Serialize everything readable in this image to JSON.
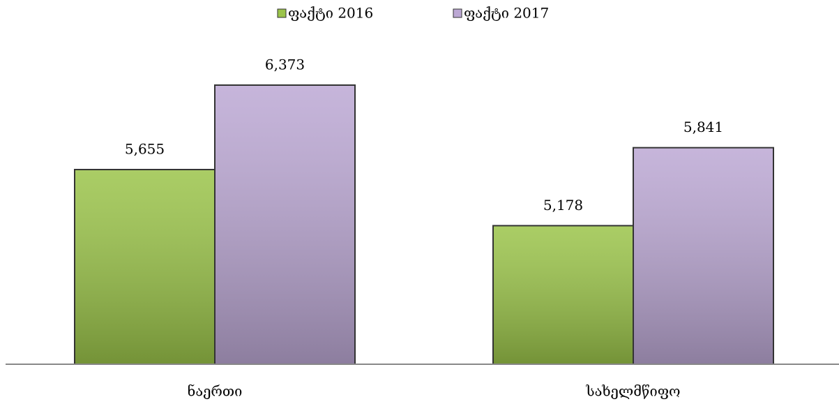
{
  "chart_data": {
    "type": "bar",
    "categories": [
      "ნაერთი",
      "სახელმწიფო"
    ],
    "series": [
      {
        "name": "ფაქტი 2016",
        "color": "#9bc44a",
        "values": [
          5655,
          5178
        ],
        "value_labels": [
          "5,655",
          "5,178"
        ]
      },
      {
        "name": "ფაქტი 2017",
        "color": "#bca8d4",
        "values": [
          6373,
          5841
        ],
        "value_labels": [
          "6,373",
          "5,841"
        ]
      }
    ],
    "ylim": [
      4000,
      6800
    ],
    "legend": "top"
  }
}
